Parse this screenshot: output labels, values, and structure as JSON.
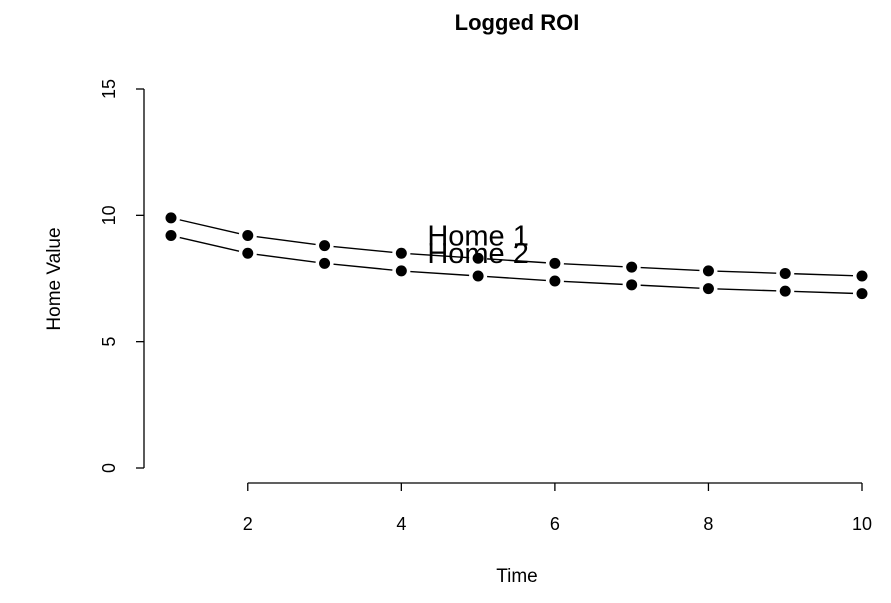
{
  "chart_data": {
    "type": "line",
    "title": "Logged ROI",
    "xlabel": "Time",
    "ylabel": "Home Value",
    "xlim": [
      1,
      10
    ],
    "ylim": [
      0,
      15
    ],
    "x_ticks": [
      2,
      4,
      6,
      8,
      10
    ],
    "y_ticks": [
      0,
      5,
      10,
      15
    ],
    "x": [
      1,
      2,
      3,
      4,
      5,
      6,
      7,
      8,
      9,
      10
    ],
    "series": [
      {
        "name": "Home 1",
        "values": [
          9.9,
          9.2,
          8.8,
          8.5,
          8.3,
          8.1,
          7.95,
          7.8,
          7.7,
          7.6
        ]
      },
      {
        "name": "Home 2",
        "values": [
          9.2,
          8.5,
          8.1,
          7.8,
          7.6,
          7.4,
          7.25,
          7.1,
          7.0,
          6.9
        ]
      }
    ],
    "series_labels": [
      {
        "text": "Home 1",
        "x": 5,
        "y": 9.2
      },
      {
        "text": "Home 2",
        "x": 5,
        "y": 8.5
      }
    ],
    "grid": false,
    "legend": "none"
  }
}
